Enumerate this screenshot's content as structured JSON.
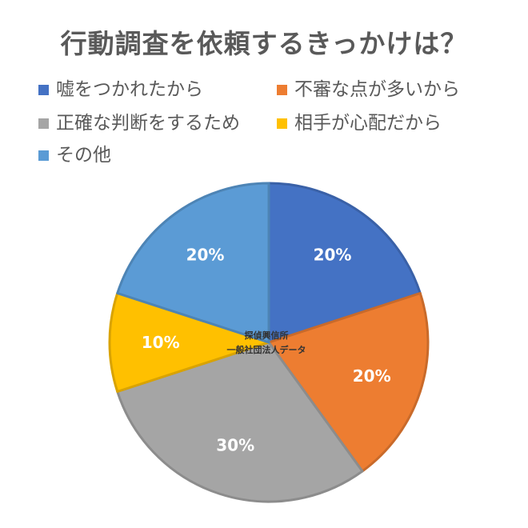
{
  "chart_data": {
    "type": "pie",
    "title": "行動調査を依頼するきっかけは？",
    "categories": [
      "嘘をつかれたから",
      "不審な点が多いから",
      "正確な判断をするため",
      "相手が心配だから",
      "その他"
    ],
    "values": [
      20,
      20,
      30,
      10,
      20
    ],
    "data_labels": [
      "20%",
      "20%",
      "30%",
      "10%",
      "20%"
    ],
    "colors": [
      "#4472C4",
      "#ED7D31",
      "#A5A5A5",
      "#FFC000",
      "#5B9BD5"
    ],
    "legend_position": "top",
    "start_angle": "12 o'clock, clockwise",
    "center_annotation": [
      "探偵興信所",
      "一般社団法人データ"
    ]
  }
}
